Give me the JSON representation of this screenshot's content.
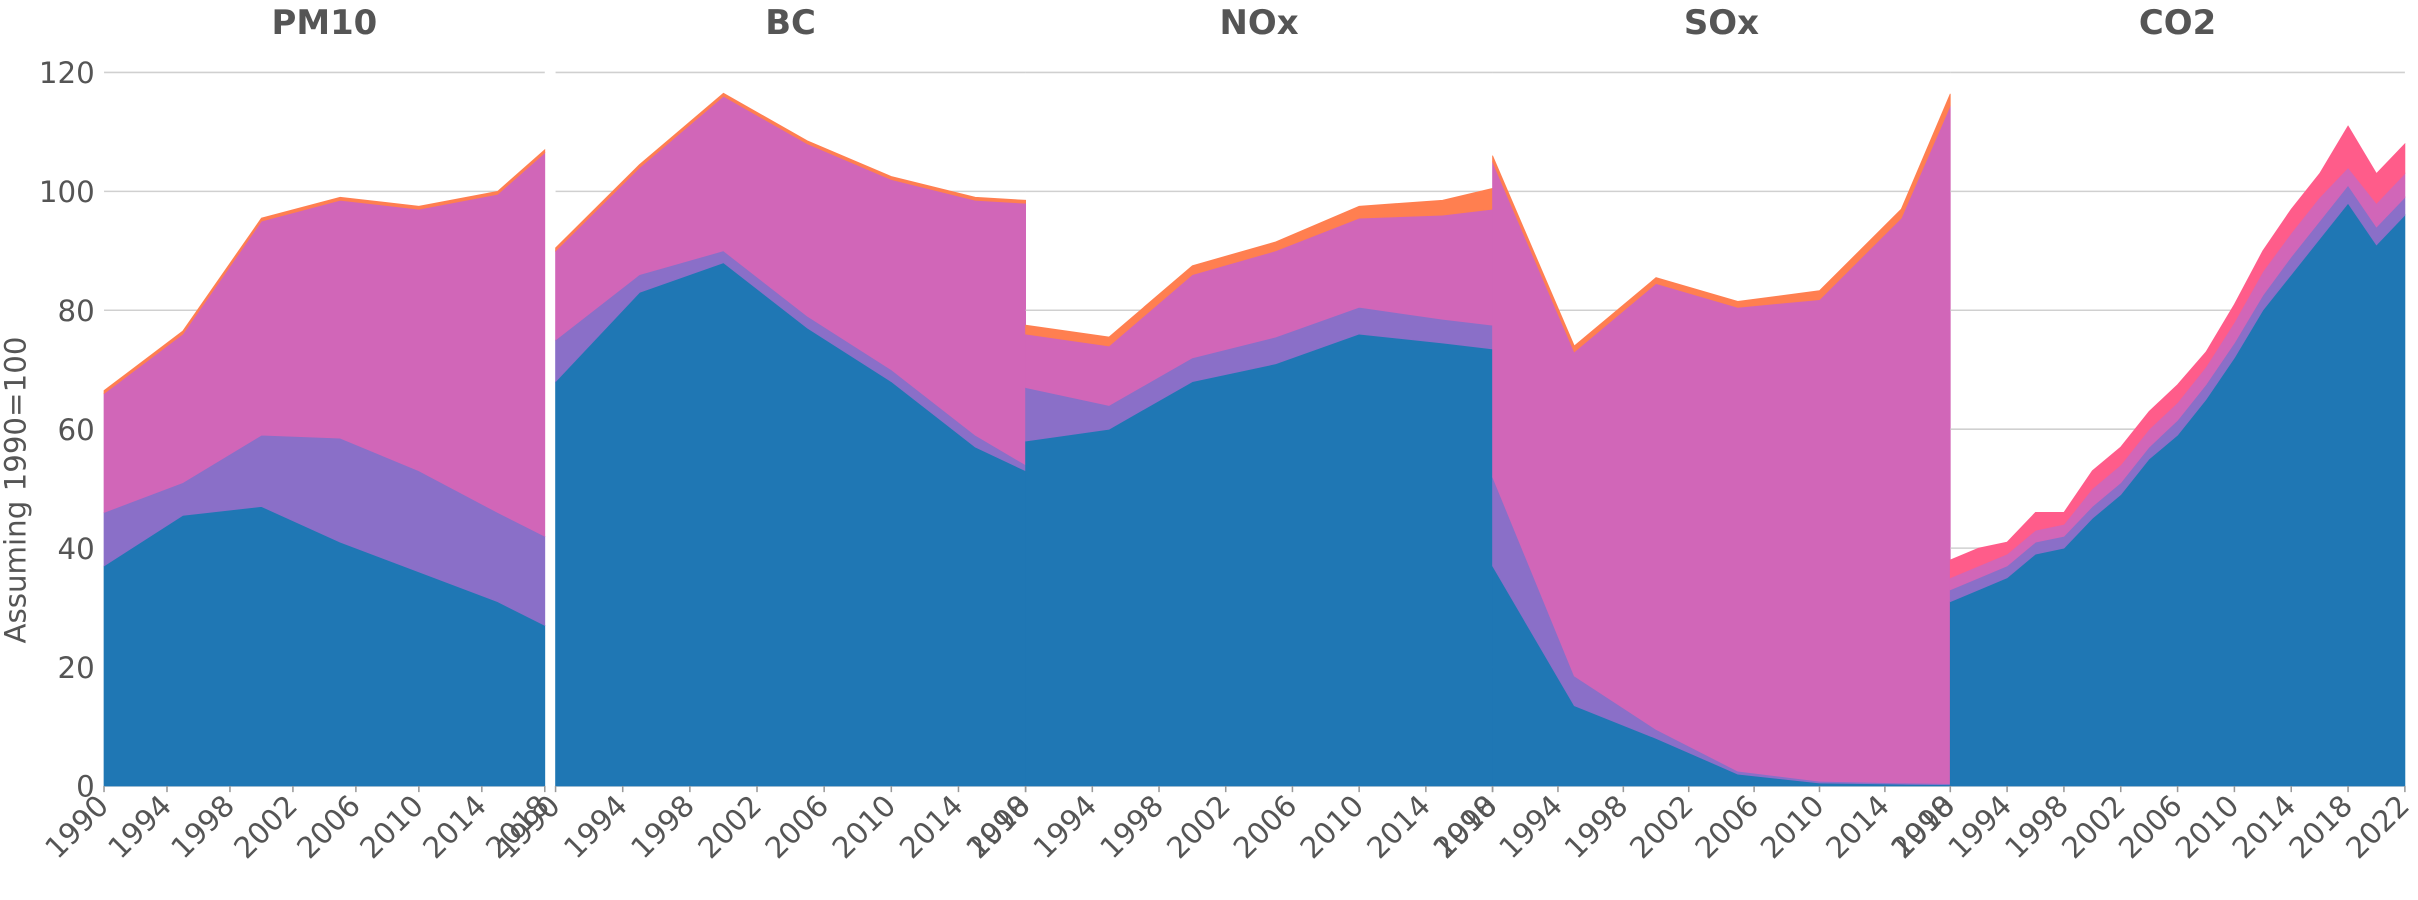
{
  "chart_data": [
    {
      "type": "area",
      "stacked": true,
      "title": "PM10",
      "ylabel": "Assuming 1990=100",
      "x": [
        1990,
        1995,
        2000,
        2005,
        2010,
        2015,
        2018
      ],
      "series": [
        {
          "color": "#1f77b4",
          "values": [
            37,
            45.5,
            47,
            41,
            36,
            31,
            27
          ]
        },
        {
          "color": "#8a6fc8",
          "values": [
            9,
            5.5,
            12,
            17.5,
            17,
            15,
            15
          ]
        },
        {
          "color": "#d166b8",
          "values": [
            20,
            25,
            36,
            40,
            44,
            53.5,
            64.5
          ]
        },
        {
          "color": "#ff7f50",
          "values": [
            0.5,
            0.5,
            0.5,
            0.5,
            0.5,
            0.5,
            0.5
          ]
        }
      ],
      "xlim": [
        1990,
        2018
      ],
      "xticks": [
        1990,
        1994,
        1998,
        2002,
        2006,
        2010,
        2014,
        2018
      ],
      "ylim": [
        0,
        120
      ],
      "yticks": [
        0,
        20,
        40,
        60,
        80,
        100,
        120
      ],
      "grid": true
    },
    {
      "type": "area",
      "stacked": true,
      "title": "BC",
      "x": [
        1990,
        1995,
        2000,
        2005,
        2010,
        2015,
        2018
      ],
      "series": [
        {
          "color": "#1f77b4",
          "values": [
            68,
            83,
            88,
            77,
            68,
            57,
            53
          ]
        },
        {
          "color": "#8a6fc8",
          "values": [
            7,
            3,
            2,
            2,
            2,
            2,
            1
          ]
        },
        {
          "color": "#d166b8",
          "values": [
            15,
            18,
            26,
            29,
            32,
            39.5,
            44
          ]
        },
        {
          "color": "#ff7f50",
          "values": [
            0.5,
            0.5,
            0.5,
            0.5,
            0.5,
            0.5,
            0.5
          ]
        }
      ],
      "xlim": [
        1990,
        2018
      ],
      "xticks": [
        1990,
        1994,
        1998,
        2002,
        2006,
        2010,
        2014,
        2018
      ],
      "ylim": [
        0,
        120
      ],
      "yticks": [
        0,
        20,
        40,
        60,
        80,
        100,
        120
      ],
      "grid": true
    },
    {
      "type": "area",
      "stacked": true,
      "title": "NOx",
      "x": [
        1990,
        1995,
        2000,
        2005,
        2010,
        2015,
        2018
      ],
      "series": [
        {
          "color": "#1f77b4",
          "values": [
            58,
            60,
            68,
            71,
            76,
            74.5,
            73.5
          ]
        },
        {
          "color": "#8a6fc8",
          "values": [
            9,
            4,
            4,
            4.5,
            4.5,
            4,
            4
          ]
        },
        {
          "color": "#d166b8",
          "values": [
            9,
            10,
            14,
            14.5,
            15,
            17.5,
            19.5
          ]
        },
        {
          "color": "#ff7f50",
          "values": [
            1.5,
            1.5,
            1.5,
            1.5,
            2,
            2.5,
            3.5
          ]
        }
      ],
      "xlim": [
        1990,
        2018
      ],
      "xticks": [
        1990,
        1994,
        1998,
        2002,
        2006,
        2010,
        2014,
        2018
      ],
      "ylim": [
        0,
        120
      ],
      "yticks": [
        0,
        20,
        40,
        60,
        80,
        100,
        120
      ],
      "grid": true
    },
    {
      "type": "area",
      "stacked": true,
      "title": "SOx",
      "x": [
        1990,
        1995,
        2000,
        2005,
        2010,
        2015,
        2018
      ],
      "series": [
        {
          "color": "#1f77b4",
          "values": [
            37,
            13.5,
            8,
            2,
            0.5,
            0.3,
            0.2
          ]
        },
        {
          "color": "#8a6fc8",
          "values": [
            15,
            5,
            1.5,
            0.5,
            0.3,
            0.2,
            0.2
          ]
        },
        {
          "color": "#d166b8",
          "values": [
            53,
            54.5,
            75,
            78,
            81,
            95,
            114
          ]
        },
        {
          "color": "#ff7f50",
          "values": [
            1,
            1,
            1,
            1,
            1.5,
            1.5,
            2
          ]
        }
      ],
      "xlim": [
        1990,
        2018
      ],
      "xticks": [
        1990,
        1994,
        1998,
        2002,
        2006,
        2010,
        2014,
        2018
      ],
      "ylim": [
        0,
        120
      ],
      "yticks": [
        0,
        20,
        40,
        60,
        80,
        100,
        120
      ],
      "grid": true
    },
    {
      "type": "area",
      "stacked": true,
      "title": "CO2",
      "x": [
        1990,
        1992,
        1994,
        1996,
        1998,
        2000,
        2002,
        2004,
        2006,
        2008,
        2010,
        2012,
        2014,
        2016,
        2018,
        2020,
        2022
      ],
      "series": [
        {
          "color": "#1f77b4",
          "values": [
            31,
            33,
            35,
            39,
            40,
            45,
            49,
            55,
            59,
            65,
            72,
            80,
            86,
            92,
            98,
            91,
            96
          ]
        },
        {
          "color": "#8a6fc8",
          "values": [
            2,
            2,
            2,
            2,
            2,
            2,
            2,
            2,
            2.5,
            2.5,
            2.5,
            2.5,
            3,
            3,
            3,
            3,
            3
          ]
        },
        {
          "color": "#d166b8",
          "values": [
            2,
            2,
            2,
            2,
            2,
            3,
            3,
            3,
            3,
            3,
            3.5,
            4,
            4,
            4,
            3,
            4,
            4
          ]
        },
        {
          "color": "#ff5c8a",
          "values": [
            3,
            3,
            2,
            3,
            2,
            3,
            3,
            3,
            3,
            2.5,
            3,
            3.5,
            4,
            4,
            7,
            5,
            5
          ]
        }
      ],
      "xlim": [
        1990,
        2022
      ],
      "xticks": [
        1990,
        1994,
        1998,
        2002,
        2006,
        2010,
        2014,
        2018,
        2022
      ],
      "ylim": [
        0,
        120
      ],
      "yticks": [
        0,
        20,
        40,
        60,
        80,
        100,
        120
      ],
      "grid": true
    }
  ]
}
